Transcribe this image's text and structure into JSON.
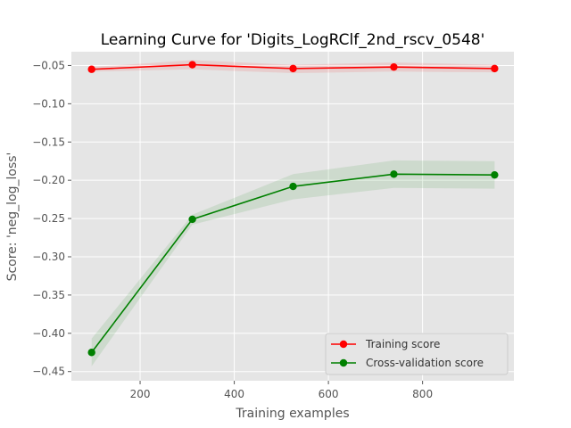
{
  "chart_data": {
    "type": "line",
    "title": "Learning Curve for 'Digits_LogRClf_2nd_rscv_0548'",
    "xlabel": "Training examples",
    "ylabel": "Score: 'neg_log_loss'",
    "xlim": [
      54,
      994
    ],
    "ylim": [
      -0.462,
      -0.032
    ],
    "xticks": [
      200,
      400,
      600,
      800
    ],
    "yticks": [
      -0.05,
      -0.1,
      -0.15,
      -0.2,
      -0.25,
      -0.3,
      -0.35,
      -0.4,
      -0.45
    ],
    "ytick_labels": [
      "−0.05",
      "−0.10",
      "−0.15",
      "−0.20",
      "−0.25",
      "−0.30",
      "−0.35",
      "−0.40",
      "−0.45"
    ],
    "grid": true,
    "legend_position": "lower-right",
    "x": [
      97,
      311,
      525,
      739,
      953
    ],
    "series": [
      {
        "name": "Training score",
        "color": "#ff0000",
        "values": [
          -0.055,
          -0.049,
          -0.054,
          -0.052,
          -0.054
        ],
        "lower": [
          -0.058,
          -0.055,
          -0.06,
          -0.058,
          -0.059
        ],
        "upper": [
          -0.052,
          -0.043,
          -0.049,
          -0.046,
          -0.049
        ]
      },
      {
        "name": "Cross-validation score",
        "color": "#008000",
        "values": [
          -0.425,
          -0.251,
          -0.208,
          -0.192,
          -0.193
        ],
        "lower": [
          -0.443,
          -0.258,
          -0.225,
          -0.21,
          -0.211
        ],
        "upper": [
          -0.407,
          -0.245,
          -0.192,
          -0.174,
          -0.175
        ]
      }
    ]
  }
}
